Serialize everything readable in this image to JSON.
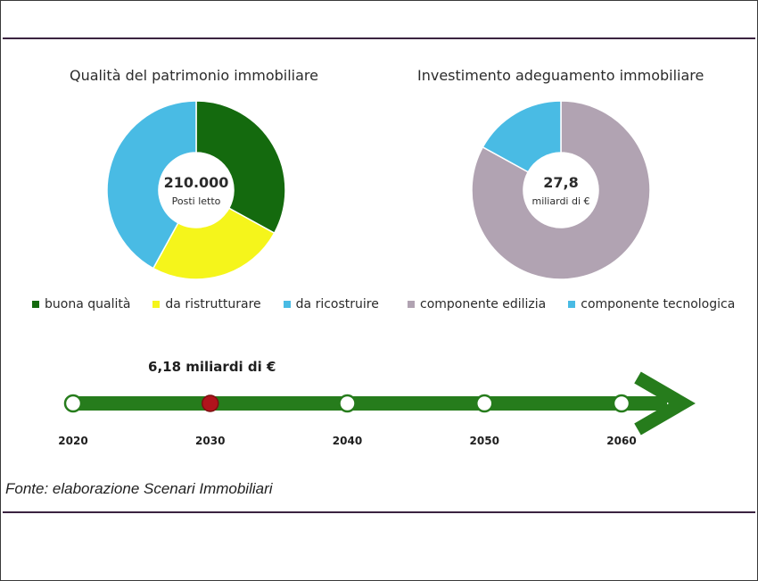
{
  "chart_data": [
    {
      "type": "pie",
      "title": "Qualità del patrimonio immobiliare",
      "center_value": "210.000",
      "center_label": "Posti letto",
      "categories": [
        "buona qualità",
        "da ristrutturare",
        "da ricostruire"
      ],
      "values": [
        33,
        25,
        42
      ],
      "colors": [
        "#146a0e",
        "#f5f51b",
        "#49bbe4"
      ],
      "legend_position": "bottom"
    },
    {
      "type": "pie",
      "title": "Investimento adeguamento immobiliare",
      "center_value": "27,8",
      "center_label": "miliardi di €",
      "categories": [
        "componente edilizia",
        "componente tecnologica"
      ],
      "values": [
        83,
        17
      ],
      "colors": [
        "#b1a3b2",
        "#49bbe4"
      ],
      "legend_position": "bottom"
    },
    {
      "type": "line",
      "title": "",
      "annotation": "6,18 miliardi di €",
      "x": [
        "2020",
        "2030",
        "2040",
        "2050",
        "2060"
      ],
      "highlighted": "2030",
      "line_color": "#267c1c",
      "highlight_color": "#b0141c"
    }
  ],
  "source": "Fonte: elaborazione Scenari Immobiliari"
}
